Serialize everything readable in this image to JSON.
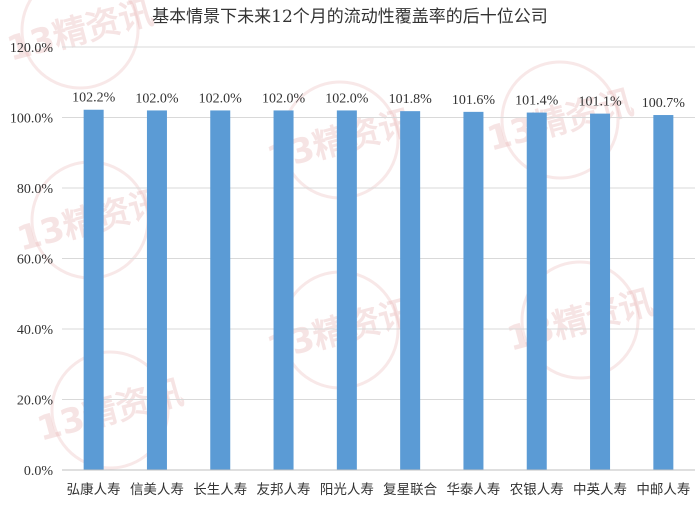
{
  "chart_data": {
    "type": "bar",
    "title": "基本情景下未来12个月的流动性覆盖率的后十位公司",
    "categories": [
      "弘康人寿",
      "信美人寿",
      "长生人寿",
      "友邦人寿",
      "阳光人寿",
      "复星联合",
      "华泰人寿",
      "农银人寿",
      "中英人寿",
      "中邮人寿"
    ],
    "values": [
      102.2,
      102.0,
      102.0,
      102.0,
      102.0,
      101.8,
      101.6,
      101.4,
      101.1,
      100.7
    ],
    "data_labels": [
      "102.2%",
      "102.0%",
      "102.0%",
      "102.0%",
      "102.0%",
      "101.8%",
      "101.6%",
      "101.4%",
      "101.1%",
      "100.7%"
    ],
    "y_ticks": [
      0,
      20,
      40,
      60,
      80,
      100,
      120
    ],
    "y_tick_labels": [
      "0.0%",
      "20.0%",
      "40.0%",
      "60.0%",
      "80.0%",
      "100.0%",
      "120.0%"
    ],
    "ylim": [
      0,
      120
    ],
    "xlabel": "",
    "ylabel": "",
    "grid": true,
    "legend": "none",
    "bar_color": "#5b9bd5"
  },
  "watermark": {
    "text": "13精资讯"
  }
}
